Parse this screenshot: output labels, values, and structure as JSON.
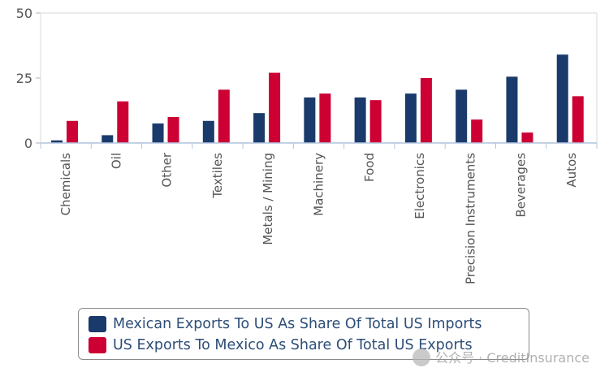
{
  "colors": {
    "mexico": "#1a3a6b",
    "us": "#cc0033",
    "axis": "#b0c4de"
  },
  "legend": {
    "items": [
      {
        "label": "Mexican Exports To US As Share Of Total US Imports",
        "color": "#1a3a6b"
      },
      {
        "label": "US Exports To Mexico As Share Of Total US Exports",
        "color": "#cc0033"
      }
    ]
  },
  "watermark": {
    "text": "公众号 · CreditInsurance",
    "icon": "wechat-icon"
  },
  "chart_data": {
    "type": "bar",
    "categories": [
      "Chemicals",
      "Oil",
      "Other",
      "Textiles",
      "Metals / Mining",
      "Machinery",
      "Food",
      "Electronics",
      "Precision Instruments",
      "Beverages",
      "Autos"
    ],
    "series": [
      {
        "name": "Mexican Exports To US As Share Of Total US Imports",
        "values": [
          1,
          3,
          7.5,
          8.5,
          11.5,
          17.5,
          17.5,
          19,
          20.5,
          25.5,
          34
        ]
      },
      {
        "name": "US Exports To Mexico As Share Of Total US Exports",
        "values": [
          8.5,
          16,
          10,
          20.5,
          27,
          19,
          16.5,
          25,
          9,
          4,
          18
        ]
      }
    ],
    "ylim": [
      0,
      50
    ],
    "yticks": [
      "0",
      "25",
      "50"
    ],
    "grid": false,
    "legend_position": "bottom"
  }
}
